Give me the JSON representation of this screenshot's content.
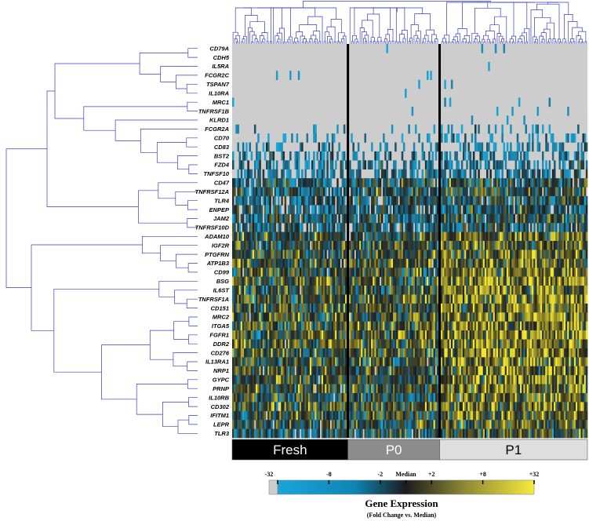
{
  "chart_data": {
    "type": "heatmap",
    "title": "",
    "genes": [
      "CD79A",
      "CDH5",
      "IL5RA",
      "FCGR2C",
      "TSPAN7",
      "IL10RA",
      "MRC1",
      "TNFRSF1B",
      "KLRD1",
      "FCGR2A",
      "CD70",
      "CD83",
      "BST2",
      "FZD4",
      "TNFSF10",
      "CD47",
      "TNFRSF12A",
      "TLR4",
      "ENPEP",
      "JAM2",
      "TNFRSF10D",
      "ADAM10",
      "IGF2R",
      "PTGFRN",
      "ATP1B3",
      "CD99",
      "BSG",
      "IL6ST",
      "TNFRSF1A",
      "CD151",
      "MRC2",
      "ITGA5",
      "FGFR1",
      "DDR2",
      "CD276",
      "IL13RA1",
      "NRP1",
      "GYPC",
      "PRNP",
      "IL10RB",
      "CD302",
      "IFITM1",
      "LEPR",
      "TLR3"
    ],
    "groups": [
      {
        "name": "Fresh",
        "color": "#000000",
        "text_color": "#ffffff",
        "cells": 68
      },
      {
        "name": "P0",
        "color": "#8c8c8c",
        "text_color": "#ffffff",
        "cells": 53
      },
      {
        "name": "P1",
        "color": "#dedede",
        "text_color": "#000000",
        "cells": 87
      }
    ],
    "row_mean_expression": [
      -4.6,
      -4.6,
      -4.7,
      -4.5,
      -4.6,
      -4.6,
      -4.4,
      -4.3,
      -4.6,
      -3.6,
      -3.3,
      -2.6,
      -2.3,
      -2.0,
      -1.9,
      -0.6,
      -0.5,
      -1.0,
      -0.9,
      -0.7,
      -1.2,
      0.1,
      0.0,
      0.1,
      0.3,
      0.4,
      0.6,
      0.4,
      0.5,
      0.4,
      0.4,
      0.5,
      0.6,
      0.6,
      0.4,
      0.3,
      0.4,
      0.2,
      0.2,
      0.0,
      0.3,
      0.1,
      -0.2,
      -0.5
    ],
    "group_shift": [
      -0.3,
      -0.2,
      0.6
    ],
    "legend": {
      "title": "Gene Expression",
      "subtitle": "(Fold Change vs. Median)",
      "tick_labels": [
        "-32",
        "-8",
        "-2",
        "Median",
        "+2",
        "+8",
        "+32"
      ],
      "tick_values": [
        -5,
        -3,
        -1,
        0,
        1,
        3,
        5
      ],
      "range": [
        -5,
        5
      ]
    },
    "colors": {
      "missing": "#cdcdcd",
      "low": "#1aa6d8",
      "mid": "#202020",
      "high": "#f2e532",
      "dendrogram": "#3a3cc0"
    }
  }
}
